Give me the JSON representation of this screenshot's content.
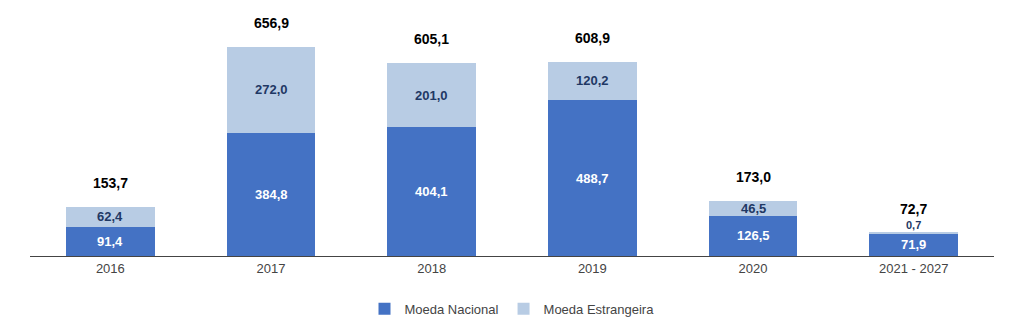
{
  "chart_data": {
    "type": "bar",
    "stacked": true,
    "categories": [
      "2016",
      "2017",
      "2018",
      "2019",
      "2020",
      "2021 - 2027"
    ],
    "series": [
      {
        "name": "Moeda Nacional",
        "color": "#4472C4",
        "values": [
          91.4,
          384.8,
          404.1,
          488.7,
          126.5,
          71.9
        ],
        "value_labels": [
          "91,4",
          "384,8",
          "404,1",
          "488,7",
          "126,5",
          "71,9"
        ]
      },
      {
        "name": "Moeda Estrangeira",
        "color": "#B8CCE4",
        "values": [
          62.4,
          272.0,
          201.0,
          120.2,
          46.5,
          0.7
        ],
        "value_labels": [
          "62,4",
          "272,0",
          "201,0",
          "120,2",
          "46,5",
          "0,7"
        ]
      }
    ],
    "totals": {
      "values": [
        153.7,
        656.9,
        605.1,
        608.9,
        173.0,
        72.7
      ],
      "value_labels": [
        "153,7",
        "656,9",
        "605,1",
        "608,9",
        "173,0",
        "72,7"
      ]
    },
    "ylim": [
      0,
      740
    ],
    "grid": false,
    "legend": "bottom",
    "data_labels": true,
    "tick_labels": "x"
  }
}
